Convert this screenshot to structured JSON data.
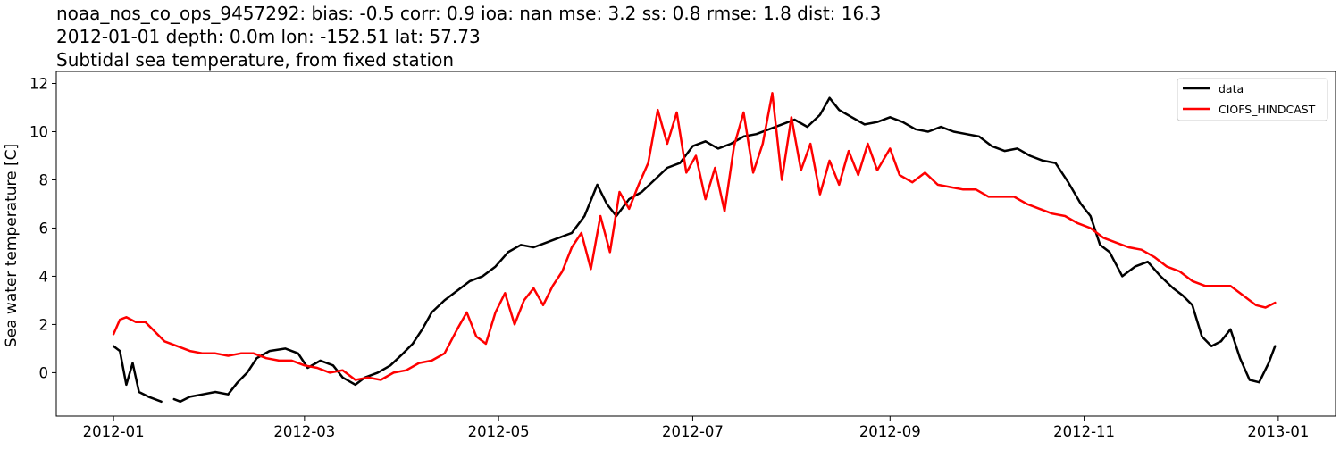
{
  "chart_data": {
    "type": "line",
    "title_lines": [
      "noaa_nos_co_ops_9457292: bias: -0.5  corr: 0.9  ioa: nan  mse: 3.2  ss: 0.8  rmse: 1.8  dist: 16.3",
      "2012-01-01 depth: 0.0m lon: -152.51 lat: 57.73",
      "Subtidal sea temperature, from fixed station"
    ],
    "xlabel": "",
    "ylabel": "Sea water temperature [C]",
    "xlim": [
      "2011-12-14",
      "2013-01-19"
    ],
    "ylim": [
      -1.8,
      12.5
    ],
    "x_ticks": [
      "2012-01",
      "2012-03",
      "2012-05",
      "2012-07",
      "2012-09",
      "2012-11",
      "2013-01"
    ],
    "y_ticks": [
      0,
      2,
      4,
      6,
      8,
      10,
      12
    ],
    "grid": false,
    "legend_position": "top-right",
    "series": [
      {
        "name": "data",
        "color": "#000000",
        "points": [
          [
            "2012-01-01",
            1.1
          ],
          [
            "2012-01-03",
            0.9
          ],
          [
            "2012-01-05",
            -0.5
          ],
          [
            "2012-01-07",
            0.4
          ],
          [
            "2012-01-09",
            -0.8
          ],
          [
            "2012-01-12",
            -1.0
          ],
          [
            "2012-01-16",
            -1.2
          ],
          [
            null,
            null
          ],
          [
            "2012-01-20",
            -1.1
          ],
          [
            "2012-01-22",
            -1.2
          ],
          [
            "2012-01-25",
            -1.0
          ],
          [
            "2012-01-29",
            -0.9
          ],
          [
            "2012-02-02",
            -0.8
          ],
          [
            "2012-02-06",
            -0.9
          ],
          [
            "2012-02-09",
            -0.4
          ],
          [
            "2012-02-12",
            0.0
          ],
          [
            "2012-02-15",
            0.6
          ],
          [
            "2012-02-19",
            0.9
          ],
          [
            "2012-02-24",
            1.0
          ],
          [
            "2012-02-28",
            0.8
          ],
          [
            "2012-03-02",
            0.2
          ],
          [
            "2012-03-06",
            0.5
          ],
          [
            "2012-03-10",
            0.3
          ],
          [
            "2012-03-13",
            -0.2
          ],
          [
            "2012-03-17",
            -0.5
          ],
          [
            "2012-03-20",
            -0.2
          ],
          [
            "2012-03-24",
            0.0
          ],
          [
            "2012-03-28",
            0.3
          ],
          [
            "2012-04-01",
            0.8
          ],
          [
            "2012-04-04",
            1.2
          ],
          [
            "2012-04-07",
            1.8
          ],
          [
            "2012-04-10",
            2.5
          ],
          [
            "2012-04-14",
            3.0
          ],
          [
            "2012-04-18",
            3.4
          ],
          [
            "2012-04-22",
            3.8
          ],
          [
            "2012-04-26",
            4.0
          ],
          [
            "2012-04-30",
            4.4
          ],
          [
            "2012-05-04",
            5.0
          ],
          [
            "2012-05-08",
            5.3
          ],
          [
            "2012-05-12",
            5.2
          ],
          [
            "2012-05-16",
            5.4
          ],
          [
            "2012-05-20",
            5.6
          ],
          [
            "2012-05-24",
            5.8
          ],
          [
            "2012-05-28",
            6.5
          ],
          [
            "2012-06-01",
            7.8
          ],
          [
            "2012-06-04",
            7.0
          ],
          [
            "2012-06-07",
            6.5
          ],
          [
            "2012-06-11",
            7.2
          ],
          [
            "2012-06-15",
            7.5
          ],
          [
            "2012-06-19",
            8.0
          ],
          [
            "2012-06-23",
            8.5
          ],
          [
            "2012-06-27",
            8.7
          ],
          [
            "2012-07-01",
            9.4
          ],
          [
            "2012-07-05",
            9.6
          ],
          [
            "2012-07-09",
            9.3
          ],
          [
            "2012-07-13",
            9.5
          ],
          [
            "2012-07-17",
            9.8
          ],
          [
            "2012-07-21",
            9.9
          ],
          [
            "2012-07-25",
            10.1
          ],
          [
            "2012-07-29",
            10.3
          ],
          [
            "2012-08-02",
            10.5
          ],
          [
            "2012-08-06",
            10.2
          ],
          [
            "2012-08-10",
            10.7
          ],
          [
            "2012-08-13",
            11.4
          ],
          [
            "2012-08-16",
            10.9
          ],
          [
            "2012-08-20",
            10.6
          ],
          [
            "2012-08-24",
            10.3
          ],
          [
            "2012-08-28",
            10.4
          ],
          [
            "2012-09-01",
            10.6
          ],
          [
            "2012-09-05",
            10.4
          ],
          [
            "2012-09-09",
            10.1
          ],
          [
            "2012-09-13",
            10.0
          ],
          [
            "2012-09-17",
            10.2
          ],
          [
            "2012-09-21",
            10.0
          ],
          [
            "2012-09-25",
            9.9
          ],
          [
            "2012-09-29",
            9.8
          ],
          [
            "2012-10-03",
            9.4
          ],
          [
            "2012-10-07",
            9.2
          ],
          [
            "2012-10-11",
            9.3
          ],
          [
            "2012-10-15",
            9.0
          ],
          [
            "2012-10-19",
            8.8
          ],
          [
            "2012-10-23",
            8.7
          ],
          [
            "2012-10-27",
            7.9
          ],
          [
            "2012-10-31",
            7.0
          ],
          [
            "2012-11-03",
            6.5
          ],
          [
            "2012-11-06",
            5.3
          ],
          [
            "2012-11-09",
            5.0
          ],
          [
            "2012-11-13",
            4.0
          ],
          [
            "2012-11-17",
            4.4
          ],
          [
            "2012-11-21",
            4.6
          ],
          [
            "2012-11-25",
            4.0
          ],
          [
            "2012-11-29",
            3.5
          ],
          [
            "2012-12-02",
            3.2
          ],
          [
            "2012-12-05",
            2.8
          ],
          [
            "2012-12-08",
            1.5
          ],
          [
            "2012-12-11",
            1.1
          ],
          [
            "2012-12-14",
            1.3
          ],
          [
            "2012-12-17",
            1.8
          ],
          [
            "2012-12-20",
            0.6
          ],
          [
            "2012-12-23",
            -0.3
          ],
          [
            "2012-12-26",
            -0.4
          ],
          [
            "2012-12-29",
            0.4
          ],
          [
            "2012-12-31",
            1.1
          ]
        ]
      },
      {
        "name": "CIOFS_HINDCAST",
        "color": "#ff0000",
        "points": [
          [
            "2012-01-01",
            1.6
          ],
          [
            "2012-01-03",
            2.2
          ],
          [
            "2012-01-05",
            2.3
          ],
          [
            "2012-01-08",
            2.1
          ],
          [
            "2012-01-11",
            2.1
          ],
          [
            "2012-01-14",
            1.7
          ],
          [
            "2012-01-17",
            1.3
          ],
          [
            "2012-01-21",
            1.1
          ],
          [
            "2012-01-25",
            0.9
          ],
          [
            "2012-01-29",
            0.8
          ],
          [
            "2012-02-02",
            0.8
          ],
          [
            "2012-02-06",
            0.7
          ],
          [
            "2012-02-10",
            0.8
          ],
          [
            "2012-02-14",
            0.8
          ],
          [
            "2012-02-18",
            0.6
          ],
          [
            "2012-02-22",
            0.5
          ],
          [
            "2012-02-26",
            0.5
          ],
          [
            "2012-03-01",
            0.3
          ],
          [
            "2012-03-05",
            0.2
          ],
          [
            "2012-03-09",
            0.0
          ],
          [
            "2012-03-13",
            0.1
          ],
          [
            "2012-03-17",
            -0.3
          ],
          [
            "2012-03-21",
            -0.2
          ],
          [
            "2012-03-25",
            -0.3
          ],
          [
            "2012-03-29",
            0.0
          ],
          [
            "2012-04-02",
            0.1
          ],
          [
            "2012-04-06",
            0.4
          ],
          [
            "2012-04-10",
            0.5
          ],
          [
            "2012-04-14",
            0.8
          ],
          [
            "2012-04-18",
            1.8
          ],
          [
            "2012-04-21",
            2.5
          ],
          [
            "2012-04-24",
            1.5
          ],
          [
            "2012-04-27",
            1.2
          ],
          [
            "2012-04-30",
            2.5
          ],
          [
            "2012-05-03",
            3.3
          ],
          [
            "2012-05-06",
            2.0
          ],
          [
            "2012-05-09",
            3.0
          ],
          [
            "2012-05-12",
            3.5
          ],
          [
            "2012-05-15",
            2.8
          ],
          [
            "2012-05-18",
            3.6
          ],
          [
            "2012-05-21",
            4.2
          ],
          [
            "2012-05-24",
            5.2
          ],
          [
            "2012-05-27",
            5.8
          ],
          [
            "2012-05-30",
            4.3
          ],
          [
            "2012-06-02",
            6.5
          ],
          [
            "2012-06-05",
            5.0
          ],
          [
            "2012-06-08",
            7.5
          ],
          [
            "2012-06-11",
            6.8
          ],
          [
            "2012-06-14",
            7.8
          ],
          [
            "2012-06-17",
            8.7
          ],
          [
            "2012-06-20",
            10.9
          ],
          [
            "2012-06-23",
            9.5
          ],
          [
            "2012-06-26",
            10.8
          ],
          [
            "2012-06-29",
            8.3
          ],
          [
            "2012-07-02",
            9.0
          ],
          [
            "2012-07-05",
            7.2
          ],
          [
            "2012-07-08",
            8.5
          ],
          [
            "2012-07-11",
            6.7
          ],
          [
            "2012-07-14",
            9.4
          ],
          [
            "2012-07-17",
            10.8
          ],
          [
            "2012-07-20",
            8.3
          ],
          [
            "2012-07-23",
            9.5
          ],
          [
            "2012-07-26",
            11.6
          ],
          [
            "2012-07-29",
            8.0
          ],
          [
            "2012-08-01",
            10.6
          ],
          [
            "2012-08-04",
            8.4
          ],
          [
            "2012-08-07",
            9.5
          ],
          [
            "2012-08-10",
            7.4
          ],
          [
            "2012-08-13",
            8.8
          ],
          [
            "2012-08-16",
            7.8
          ],
          [
            "2012-08-19",
            9.2
          ],
          [
            "2012-08-22",
            8.2
          ],
          [
            "2012-08-25",
            9.5
          ],
          [
            "2012-08-28",
            8.4
          ],
          [
            "2012-09-01",
            9.3
          ],
          [
            "2012-09-04",
            8.2
          ],
          [
            "2012-09-08",
            7.9
          ],
          [
            "2012-09-12",
            8.3
          ],
          [
            "2012-09-16",
            7.8
          ],
          [
            "2012-09-20",
            7.7
          ],
          [
            "2012-09-24",
            7.6
          ],
          [
            "2012-09-28",
            7.6
          ],
          [
            "2012-10-02",
            7.3
          ],
          [
            "2012-10-06",
            7.3
          ],
          [
            "2012-10-10",
            7.3
          ],
          [
            "2012-10-14",
            7.0
          ],
          [
            "2012-10-18",
            6.8
          ],
          [
            "2012-10-22",
            6.6
          ],
          [
            "2012-10-26",
            6.5
          ],
          [
            "2012-10-30",
            6.2
          ],
          [
            "2012-11-03",
            6.0
          ],
          [
            "2012-11-07",
            5.6
          ],
          [
            "2012-11-11",
            5.4
          ],
          [
            "2012-11-15",
            5.2
          ],
          [
            "2012-11-19",
            5.1
          ],
          [
            "2012-11-23",
            4.8
          ],
          [
            "2012-11-27",
            4.4
          ],
          [
            "2012-12-01",
            4.2
          ],
          [
            "2012-12-05",
            3.8
          ],
          [
            "2012-12-09",
            3.6
          ],
          [
            "2012-12-13",
            3.6
          ],
          [
            "2012-12-17",
            3.6
          ],
          [
            "2012-12-21",
            3.2
          ],
          [
            "2012-12-25",
            2.8
          ],
          [
            "2012-12-28",
            2.7
          ],
          [
            "2012-12-31",
            2.9
          ]
        ]
      }
    ]
  }
}
